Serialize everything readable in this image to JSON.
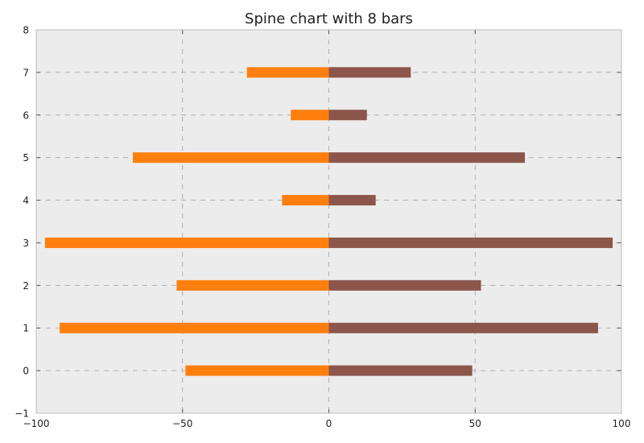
{
  "chart_data": {
    "type": "bar",
    "orientation": "horizontal",
    "title": "Spine chart with 8 bars",
    "xlabel": "",
    "ylabel": "",
    "xlim": [
      -100,
      100
    ],
    "ylim": [
      -1,
      8
    ],
    "x_ticks": [
      -100,
      -50,
      0,
      50,
      100
    ],
    "x_tick_labels": [
      "−100",
      "−50",
      "0",
      "50",
      "100"
    ],
    "y_ticks": [
      -1,
      0,
      1,
      2,
      3,
      4,
      5,
      6,
      7,
      8
    ],
    "y_tick_labels": [
      "−1",
      "0",
      "1",
      "2",
      "3",
      "4",
      "5",
      "6",
      "7",
      "8"
    ],
    "grid": true,
    "categories": [
      0,
      1,
      2,
      3,
      4,
      5,
      6,
      7
    ],
    "series": [
      {
        "values": [
          -49,
          -92,
          -52,
          -97,
          -16,
          -67,
          -13,
          -28
        ],
        "color": "#ff7f0e"
      },
      {
        "values": [
          49,
          92,
          52,
          97,
          16,
          67,
          13,
          28
        ],
        "color": "#8c564b"
      }
    ]
  }
}
